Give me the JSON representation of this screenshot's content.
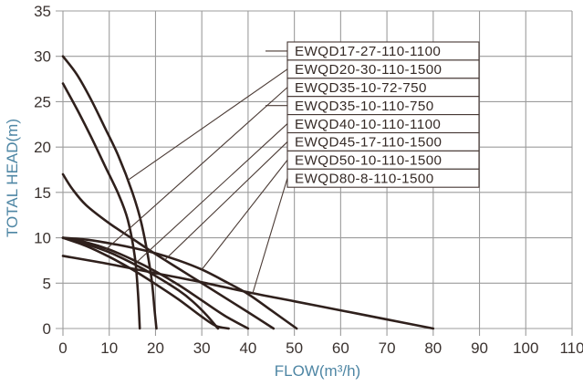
{
  "chart_data": {
    "type": "line",
    "title": "",
    "xlabel": "FLOW(m³/h)",
    "ylabel": "TOTAL HEAD(m)",
    "xlim": [
      0,
      110
    ],
    "ylim": [
      0,
      35
    ],
    "x_ticks": [
      0,
      10,
      20,
      30,
      40,
      50,
      60,
      70,
      80,
      90,
      100,
      110
    ],
    "y_ticks": [
      0,
      5,
      10,
      15,
      20,
      25,
      30,
      35
    ],
    "grid": true,
    "legend_position": "top-right boxed rows with leader lines",
    "series": [
      {
        "name": "EWQD17-27-110-1100",
        "leader": "stub",
        "leader_flow": null,
        "points": [
          [
            0,
            27
          ],
          [
            3,
            24.2
          ],
          [
            6,
            21.2
          ],
          [
            9,
            18
          ],
          [
            12,
            14.8
          ],
          [
            14,
            12
          ],
          [
            15.5,
            8
          ],
          [
            16.2,
            4
          ],
          [
            16.6,
            0
          ]
        ]
      },
      {
        "name": "EWQD20-30-110-1500",
        "leader": "line",
        "leader_flow": 14,
        "points": [
          [
            0,
            30
          ],
          [
            3,
            28
          ],
          [
            6,
            25.3
          ],
          [
            9,
            22.2
          ],
          [
            12,
            19
          ],
          [
            15,
            15
          ],
          [
            17,
            11.5
          ],
          [
            19,
            6
          ],
          [
            19.8,
            2
          ],
          [
            20.2,
            0
          ]
        ]
      },
      {
        "name": "EWQD35-10-72-750",
        "leader": "line",
        "leader_flow": 9,
        "points": [
          [
            0,
            10
          ],
          [
            5,
            9.3
          ],
          [
            10,
            8.4
          ],
          [
            15,
            7.2
          ],
          [
            20,
            5.8
          ],
          [
            25,
            4.2
          ],
          [
            28,
            3
          ],
          [
            31,
            1.5
          ],
          [
            33.5,
            0
          ]
        ]
      },
      {
        "name": "EWQD35-10-110-750",
        "leader": "stub",
        "leader_flow": null,
        "points": [
          [
            0,
            10
          ],
          [
            5,
            9.1
          ],
          [
            10,
            7.9
          ],
          [
            15,
            6.5
          ],
          [
            20,
            4.9
          ],
          [
            25,
            3.2
          ],
          [
            30,
            1.3
          ],
          [
            33,
            0.3
          ],
          [
            35.8,
            0
          ]
        ]
      },
      {
        "name": "EWQD40-10-110-1100",
        "leader": "line",
        "leader_flow": 16,
        "points": [
          [
            0,
            10
          ],
          [
            5,
            9.5
          ],
          [
            10,
            8.7
          ],
          [
            15,
            7.6
          ],
          [
            20,
            6.3
          ],
          [
            25,
            4.8
          ],
          [
            30,
            3.1
          ],
          [
            35,
            1.4
          ],
          [
            40,
            0
          ]
        ]
      },
      {
        "name": "EWQD45-17-110-1500",
        "leader": "line",
        "leader_flow": 22,
        "points": [
          [
            0,
            17
          ],
          [
            2,
            15.4
          ],
          [
            5,
            13.6
          ],
          [
            10,
            11.6
          ],
          [
            15,
            9.9
          ],
          [
            20,
            8.2
          ],
          [
            25,
            6.6
          ],
          [
            30,
            5
          ],
          [
            35,
            3.4
          ],
          [
            40,
            1.8
          ],
          [
            45.5,
            0
          ]
        ]
      },
      {
        "name": "EWQD50-10-110-1500",
        "leader": "line",
        "leader_flow": 30,
        "points": [
          [
            0,
            10
          ],
          [
            5,
            9.8
          ],
          [
            10,
            9.4
          ],
          [
            15,
            8.9
          ],
          [
            20,
            8.3
          ],
          [
            25,
            7.5
          ],
          [
            30,
            6.5
          ],
          [
            35,
            5.2
          ],
          [
            40,
            3.8
          ],
          [
            45,
            2
          ],
          [
            50.5,
            0
          ]
        ]
      },
      {
        "name": "EWQD80-8-110-1500",
        "leader": "line",
        "leader_flow": 41,
        "points": [
          [
            0,
            8
          ],
          [
            10,
            7.1
          ],
          [
            20,
            6.1
          ],
          [
            30,
            5.1
          ],
          [
            40,
            4
          ],
          [
            50,
            3
          ],
          [
            60,
            2
          ],
          [
            70,
            1
          ],
          [
            80,
            0
          ]
        ]
      }
    ]
  },
  "colors": {
    "background": "#ffffff",
    "grid": "#9c9c9c",
    "curve": "#2f201c",
    "leader": "#4a3a34",
    "tick_text": "#3b3330",
    "axis_title": "#4e86a4",
    "legend_border": "#453733",
    "legend_text": "#352a26"
  }
}
